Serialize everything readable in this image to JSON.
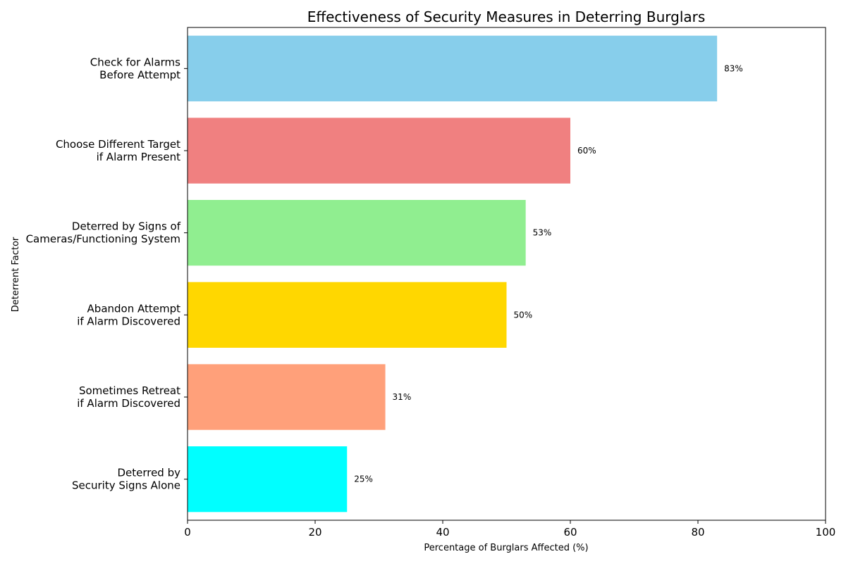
{
  "chart_data": {
    "type": "bar",
    "orientation": "horizontal",
    "title": "Effectiveness of Security Measures in Deterring Burglars",
    "xlabel": "Percentage of Burglars Affected (%)",
    "ylabel": "Deterrent Factor",
    "xlim": [
      0,
      100
    ],
    "xticks": [
      0,
      20,
      40,
      60,
      80,
      100
    ],
    "grid": false,
    "categories": [
      [
        "Check for Alarms",
        "Before Attempt"
      ],
      [
        "Choose Different Target",
        "if Alarm Present"
      ],
      [
        "Deterred by Signs of",
        "Cameras/Functioning System"
      ],
      [
        "Abandon Attempt",
        "if Alarm Discovered"
      ],
      [
        "Sometimes Retreat",
        "if Alarm Discovered"
      ],
      [
        "Deterred by",
        "Security Signs Alone"
      ]
    ],
    "values": [
      83,
      60,
      53,
      50,
      31,
      25
    ],
    "value_labels": [
      "83%",
      "60%",
      "53%",
      "50%",
      "31%",
      "25%"
    ],
    "colors": [
      "#87ceeb",
      "#f08080",
      "#90ee90",
      "#ffd700",
      "#ffa07a",
      "#00ffff"
    ]
  }
}
